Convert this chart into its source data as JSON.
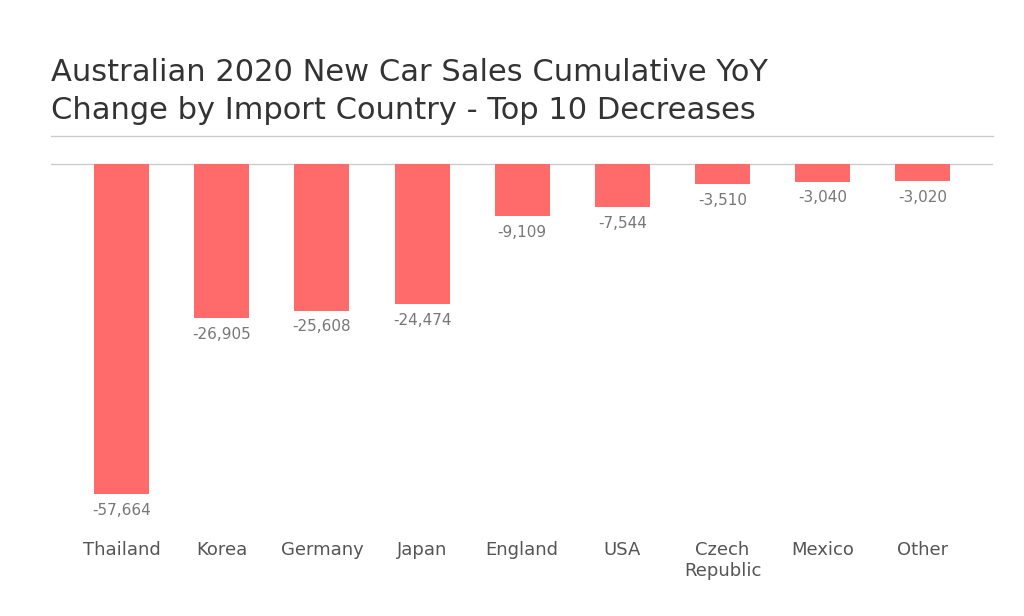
{
  "categories": [
    "Thailand",
    "Korea",
    "Germany",
    "Japan",
    "England",
    "USA",
    "Czech\nRepublic",
    "Mexico",
    "Other"
  ],
  "values": [
    -57664,
    -26905,
    -25608,
    -24474,
    -9109,
    -7544,
    -3510,
    -3040,
    -3020
  ],
  "labels": [
    "-57,664",
    "-26,905",
    "-25,608",
    "-24,474",
    "-9,109",
    "-7,544",
    "-3,510",
    "-3,040",
    "-3,020"
  ],
  "bar_color": "#FF6B6B",
  "title_line1": "Australian 2020 New Car Sales Cumulative YoY",
  "title_line2": "Change by Import Country - Top 10 Decreases",
  "title_fontsize": 22,
  "label_fontsize": 11,
  "tick_fontsize": 13,
  "background_color": "#FFFFFF",
  "label_color": "#777777",
  "spine_color": "#CCCCCC",
  "ylim": [
    -65000,
    5000
  ],
  "bar_width": 0.55
}
